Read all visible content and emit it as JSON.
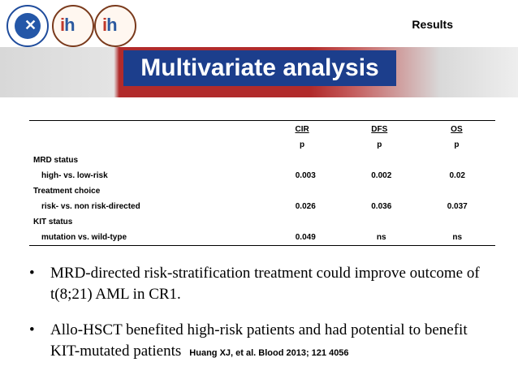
{
  "header": {
    "section_label": "Results",
    "logos": [
      "university-seal",
      "hematology-institute-logo",
      "hematology-institute-logo"
    ],
    "logo_mark_ih_i": "i",
    "logo_mark_ih_h": "h"
  },
  "banner": {
    "title": "Multivariate analysis",
    "colors": {
      "title_bg": "#1c3e8c",
      "band": "#b12b2b"
    }
  },
  "table": {
    "columns": [
      "CIR",
      "DFS",
      "OS"
    ],
    "subheader": [
      "p",
      "p",
      "p"
    ],
    "rows": [
      {
        "label": "MRD status",
        "indent": false,
        "values": [
          "",
          "",
          ""
        ]
      },
      {
        "label": "high- vs. low-risk",
        "indent": true,
        "values": [
          "0.003",
          "0.002",
          "0.02"
        ]
      },
      {
        "label": "Treatment  choice",
        "indent": false,
        "values": [
          "",
          "",
          ""
        ]
      },
      {
        "label": "risk- vs. non risk-directed",
        "indent": true,
        "values": [
          "0.026",
          "0.036",
          "0.037"
        ]
      },
      {
        "label": "KIT status",
        "indent": false,
        "values": [
          "",
          "",
          ""
        ]
      },
      {
        "label": "mutation vs. wild-type",
        "indent": true,
        "values": [
          "0.049",
          "ns",
          "ns"
        ]
      }
    ]
  },
  "bullets": [
    {
      "symbol": "•",
      "text": " MRD-directed risk-stratification treatment could improve outcome of t(8;21) AML in CR1."
    },
    {
      "symbol": "•",
      "text": "Allo-HSCT benefited high-risk patients and had potential to benefit KIT-mutated patients"
    }
  ],
  "citation": "Huang XJ, et al. Blood 2013; 121 4056"
}
